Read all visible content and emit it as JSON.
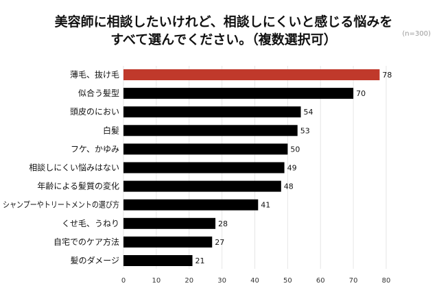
{
  "chart_data": {
    "type": "bar",
    "orientation": "horizontal",
    "title_lines": [
      "美容師に相談したいけれど、相談しにくいと感じる悩みを",
      "すべて選んでください。（複数選択可）"
    ],
    "note": "(n=300)",
    "categories": [
      "薄毛、抜け毛",
      "似合う髪型",
      "頭皮のにおい",
      "白髪",
      "フケ、かゆみ",
      "相談しにくい悩みはない",
      "年齢による髪質の変化",
      "シャンプーやトリートメントの選び方",
      "くせ毛、うねり",
      "自宅でのケア方法",
      "髪のダメージ"
    ],
    "values": [
      78,
      70,
      54,
      53,
      50,
      49,
      48,
      41,
      28,
      27,
      21
    ],
    "highlight_index": 0,
    "xlim": [
      0,
      80
    ],
    "xticks": [
      0,
      10,
      20,
      30,
      40,
      50,
      60,
      70,
      80
    ],
    "grid": true,
    "legend": "none",
    "colors": {
      "highlight": "#c0392b",
      "bar": "#000000",
      "grid": "#e6e6e6"
    }
  }
}
